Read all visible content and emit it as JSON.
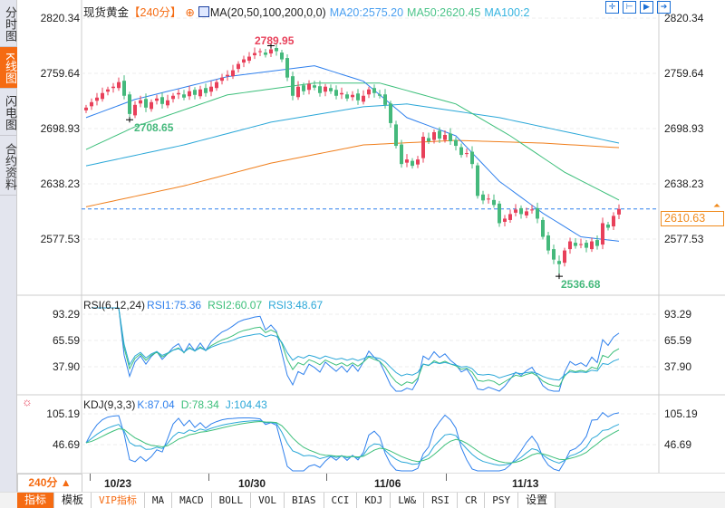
{
  "sidebar": {
    "tabs": [
      {
        "label": "分时图"
      },
      {
        "label": "K线图",
        "active": true
      },
      {
        "label": "闪电图"
      },
      {
        "label": "合约资料"
      }
    ]
  },
  "header": {
    "symbol": "现货黄金",
    "period": "【240分】",
    "ma_label": "MA(20,50,100,200,0,0)",
    "ma20": "MA20:2575.20",
    "ma50": "MA50:2620.45",
    "ma100": "MA100:2"
  },
  "toolbar_icons": [
    "crosshair-icon",
    "zoom-left-icon",
    "play-icon",
    "move-right-icon"
  ],
  "price_axis": [
    "2820.34",
    "2759.64",
    "2698.93",
    "2638.23",
    "2577.53"
  ],
  "current_price": "2610.63",
  "annotations": {
    "high": "2789.95",
    "low1": "2708.65",
    "low2": "2536.68"
  },
  "rsi": {
    "label": "RSI(6,12,24)",
    "rsi1": "RSI1:75.36",
    "rsi2": "RSI2:60.07",
    "rsi3": "RSI3:48.67",
    "axis": [
      "93.29",
      "65.59",
      "37.90"
    ]
  },
  "kdj": {
    "label": "KDJ(9,3,3)",
    "k": "K:87.04",
    "d": "D:78.34",
    "j": "J:104.43",
    "axis": [
      "105.19",
      "46.69"
    ]
  },
  "period_selector": "240分 ▲",
  "dates": [
    "10/23",
    "10/30",
    "11/06",
    "11/13"
  ],
  "tabs": [
    "指标",
    "模板",
    "VIP指标",
    "MA",
    "MACD",
    "BOLL",
    "VOL",
    "BIAS",
    "CCI",
    "KDJ",
    "LW&",
    "RSI",
    "CR",
    "PSY",
    "设置"
  ],
  "colors": {
    "up": "#e8405a",
    "down": "#45b97c",
    "accent": "#f56b12",
    "ma20": "#2f80ed",
    "ma50": "#3cbf7a",
    "ma100": "#2aa7d8",
    "ma200": "#f07f1c"
  },
  "chart_data": {
    "type": "candlestick",
    "closes": [
      2722,
      2728,
      2733,
      2738,
      2742,
      2745,
      2750,
      2735,
      2715,
      2725,
      2730,
      2722,
      2728,
      2732,
      2726,
      2730,
      2735,
      2738,
      2733,
      2740,
      2736,
      2742,
      2738,
      2745,
      2750,
      2755,
      2758,
      2763,
      2770,
      2775,
      2778,
      2782,
      2784,
      2780,
      2786,
      2784,
      2775,
      2755,
      2735,
      2745,
      2740,
      2748,
      2744,
      2738,
      2745,
      2740,
      2735,
      2738,
      2732,
      2736,
      2730,
      2735,
      2742,
      2738,
      2735,
      2725,
      2705,
      2680,
      2660,
      2665,
      2658,
      2665,
      2690,
      2685,
      2695,
      2688,
      2692,
      2685,
      2680,
      2670,
      2672,
      2660,
      2625,
      2620,
      2622,
      2615,
      2595,
      2600,
      2605,
      2610,
      2605,
      2608,
      2610,
      2600,
      2580,
      2565,
      2555,
      2550,
      2565,
      2575,
      2570,
      2572,
      2568,
      2575,
      2570,
      2595,
      2590,
      2603,
      2610.63
    ],
    "ma20": [
      [
        0,
        2711
      ],
      [
        9,
        2731
      ],
      [
        26,
        2756
      ],
      [
        42,
        2768
      ],
      [
        51,
        2751
      ],
      [
        59,
        2711
      ],
      [
        68,
        2691
      ],
      [
        76,
        2641
      ],
      [
        84,
        2606
      ],
      [
        91,
        2580
      ],
      [
        98,
        2575.2
      ]
    ],
    "ma50": [
      [
        0,
        2676
      ],
      [
        9,
        2701
      ],
      [
        26,
        2736
      ],
      [
        42,
        2749
      ],
      [
        54,
        2749
      ],
      [
        68,
        2726
      ],
      [
        78,
        2691
      ],
      [
        88,
        2651
      ],
      [
        98,
        2620.45
      ]
    ],
    "ma100": [
      [
        0,
        2658
      ],
      [
        18,
        2681
      ],
      [
        34,
        2706
      ],
      [
        51,
        2723
      ],
      [
        59,
        2726
      ],
      [
        76,
        2711
      ],
      [
        98,
        2683
      ]
    ],
    "ma200": [
      [
        0,
        2613
      ],
      [
        18,
        2636
      ],
      [
        34,
        2661
      ],
      [
        51,
        2681
      ],
      [
        68,
        2686
      ],
      [
        84,
        2683
      ],
      [
        98,
        2678
      ]
    ],
    "ylim": [
      2520,
      2825
    ]
  }
}
